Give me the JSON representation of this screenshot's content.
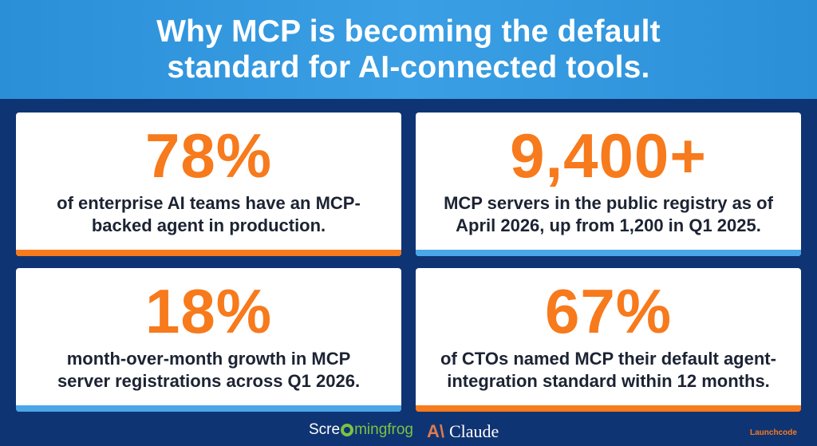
{
  "header": {
    "title": "Why MCP is becoming the default\nstandard for AI-connected tools."
  },
  "cards": [
    {
      "stat": "78%",
      "description": "of enterprise AI teams have an MCP-\nbacked agent in production.",
      "accent": "#f77a1c"
    },
    {
      "stat": "9,400+",
      "description": "MCP servers in the public registry as of\nApril 2026, up from 1,200 in Q1 2025.",
      "accent": "#4aa6e8"
    },
    {
      "stat": "18%",
      "description": "month-over-month growth in MCP\nserver registrations across Q1 2026.",
      "accent": "#4aa6e8"
    },
    {
      "stat": "67%",
      "description": "of CTOs named MCP their default agent-\nintegration standard within 12 months.",
      "accent": "#f77a1c"
    }
  ],
  "footer": {
    "screamingfrog_a": "Scre",
    "screamingfrog_b": "mingfrog",
    "claude_mark": "A\\",
    "claude_text": "Claude",
    "launchcode": "Launchcode"
  },
  "colors": {
    "background": "#0f3473",
    "header": "#2b8fd8",
    "stat_orange": "#f77a1c",
    "accent_blue": "#4aa6e8"
  }
}
